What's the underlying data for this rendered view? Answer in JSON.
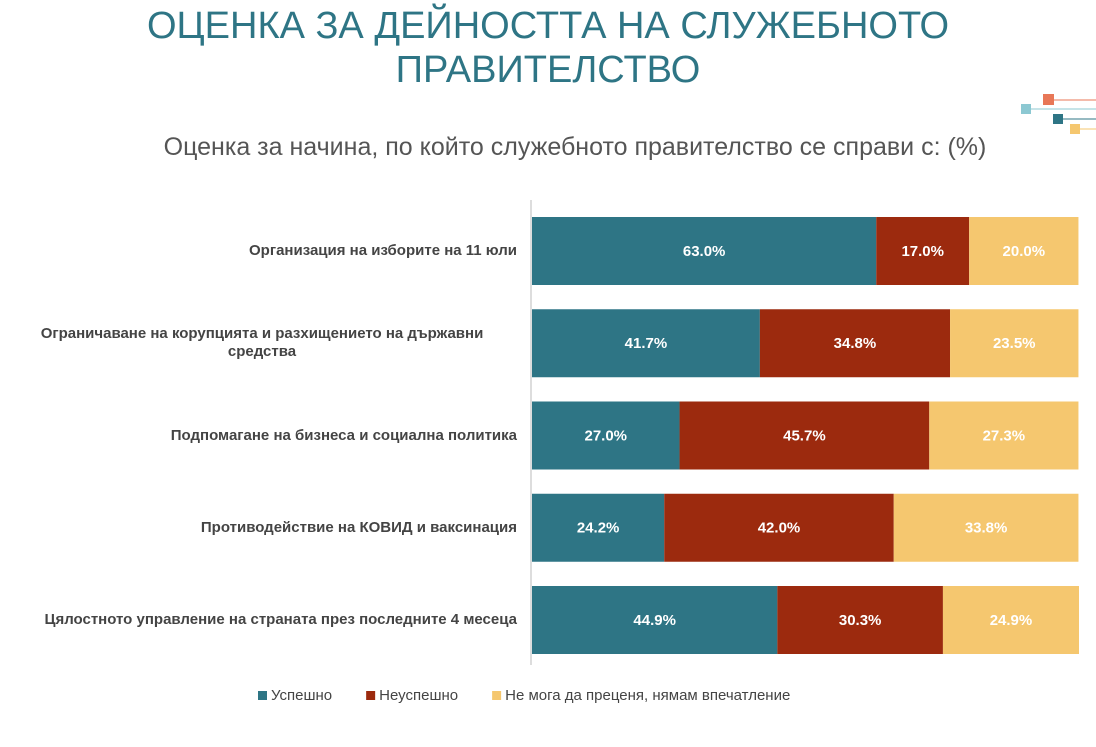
{
  "chart_data": {
    "type": "stacked-bar-horizontal",
    "title": "ОЦЕНКА ЗА ДЕЙНОСТТА НА СЛУЖЕБНОТО ПРАВИТЕЛСТВО",
    "subtitle": "Оценка за начина, по който служебното правителство се справи с: (%)",
    "categories": [
      "Организация на изборите на 11 юли",
      "Ограничаване на корупцията и разхищението на държавни средства",
      "Подпомагане на бизнеса и социална политика",
      "Противодействие на КОВИД и ваксинация",
      "Цялостното управление на страната през последните 4 месеца"
    ],
    "series": [
      {
        "name": "Успешно",
        "color": "#2e7585",
        "values": [
          63.0,
          41.7,
          27.0,
          24.2,
          44.9
        ],
        "value_labels": [
          "63.0%",
          "41.7%",
          "27.0%",
          "24.2%",
          "44.9%"
        ]
      },
      {
        "name": "Неуспешно",
        "color": "#9c2a0e",
        "values": [
          17.0,
          34.8,
          45.7,
          42.0,
          30.3
        ],
        "value_labels": [
          "17.0%",
          "34.8%",
          "45.7%",
          "42.0%",
          "30.3%"
        ]
      },
      {
        "name": "Не мога да преценя, нямам впечатление",
        "color": "#f5c76f",
        "values": [
          20.0,
          23.5,
          27.3,
          33.8,
          24.9
        ],
        "value_labels": [
          "20.0%",
          "23.5%",
          "27.3%",
          "33.8%",
          "24.9%"
        ]
      }
    ],
    "legend": "bottom"
  }
}
